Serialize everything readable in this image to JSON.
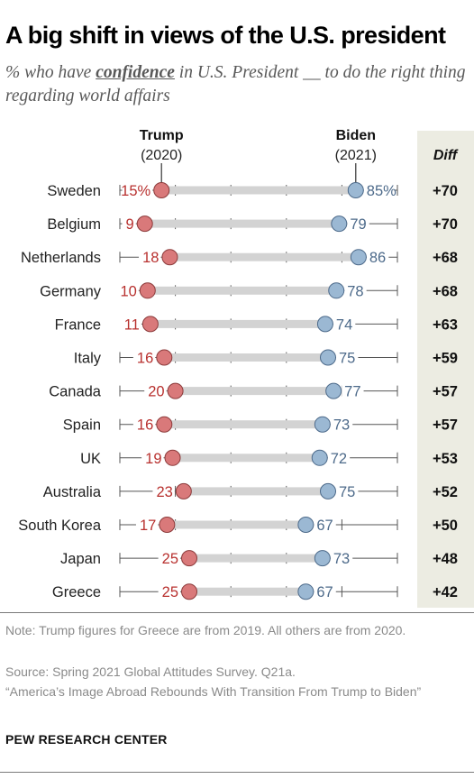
{
  "title": "A big shift in views of the U.S. president",
  "subtitle": {
    "prefix": "% who have ",
    "keyword": "confidence",
    "suffix": " in U.S. President __ to do the right thing regarding world affairs"
  },
  "notes": {
    "note": "Note: Trump figures for Greece are from 2019. All others are from 2020.",
    "source": "Source: Spring 2021 Global Attitudes Survey. Q21a.",
    "report": "“America’s Image Abroad Rebounds With Transition From Trump to Biden”"
  },
  "brand": "PEW RESEARCH CENTER",
  "colors": {
    "trump": "#d9797a",
    "trump_text": "#b8312f",
    "biden": "#9bb8d3",
    "biden_text": "#4d6a8a",
    "bar": "#d3d3d3",
    "diff_bg": "#ecece2"
  },
  "chart_data": {
    "type": "dot-range",
    "xlim": [
      0,
      100
    ],
    "series": [
      {
        "name": "Trump",
        "sub": "(2020)",
        "values": [
          15,
          9,
          18,
          10,
          11,
          16,
          20,
          16,
          19,
          23,
          17,
          25,
          25
        ],
        "labels": [
          "15%",
          "9",
          "18",
          "10",
          "11",
          "16",
          "20",
          "16",
          "19",
          "23",
          "17",
          "25",
          "25"
        ]
      },
      {
        "name": "Biden",
        "sub": "(2021)",
        "values": [
          85,
          79,
          86,
          78,
          74,
          75,
          77,
          73,
          72,
          75,
          67,
          73,
          67
        ],
        "labels": [
          "85%",
          "79",
          "86",
          "78",
          "74",
          "75",
          "77",
          "73",
          "72",
          "75",
          "67",
          "73",
          "67"
        ]
      }
    ],
    "categories": [
      "Sweden",
      "Belgium",
      "Netherlands",
      "Germany",
      "France",
      "Italy",
      "Canada",
      "Spain",
      "UK",
      "Australia",
      "South Korea",
      "Japan",
      "Greece"
    ],
    "diff_header": "Diff",
    "diff": [
      "+70",
      "+70",
      "+68",
      "+68",
      "+63",
      "+59",
      "+57",
      "+57",
      "+53",
      "+52",
      "+50",
      "+48",
      "+42"
    ]
  }
}
